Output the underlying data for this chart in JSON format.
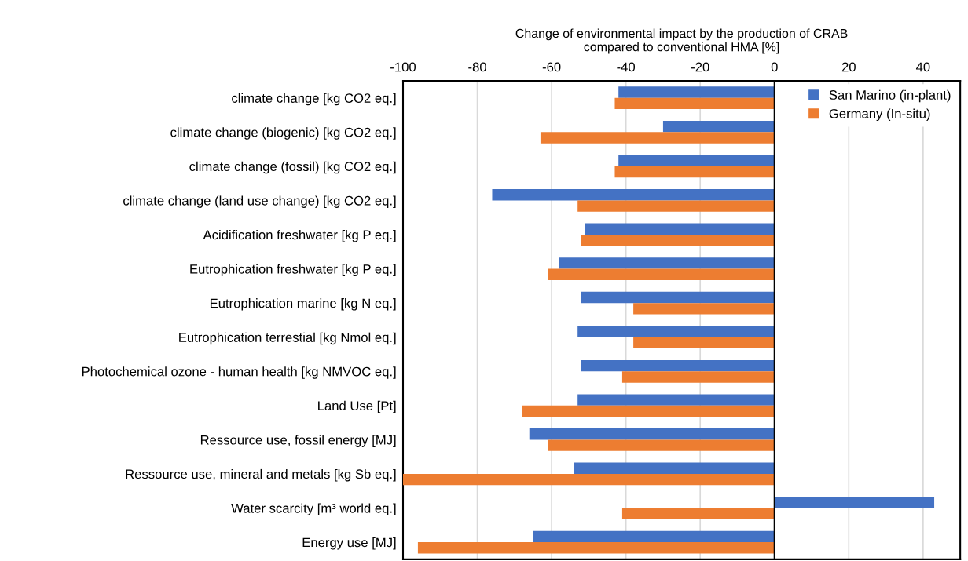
{
  "chart_data": {
    "type": "bar",
    "orientation": "horizontal",
    "xlabel": "Change of environmental impact by the production of CRAB\ncompared to conventional HMA [%]",
    "categories": [
      "climate change [kg CO2 eq.]",
      "climate change (biogenic) [kg CO2 eq.]",
      "climate change (fossil) [kg CO2 eq.]",
      "climate change (land use change) [kg CO2 eq.]",
      "Acidification freshwater [kg P eq.]",
      "Eutrophication freshwater [kg P eq.]",
      "Eutrophication marine [kg N eq.]",
      "Eutrophication terrestial [kg Nmol eq.]",
      "Photochemical ozone - human health [kg NMVOC eq.]",
      "Land Use [Pt]",
      "Ressource use, fossil energy [MJ]",
      "Ressource use, mineral and metals [kg Sb eq.]",
      "Water scarcity [m³ world eq.]",
      "Energy use [MJ]"
    ],
    "series": [
      {
        "name": "San Marino (in-plant)",
        "color": "#4472c4",
        "values": [
          -42,
          -30,
          -42,
          -76,
          -51,
          -58,
          -52,
          -53,
          -52,
          -53,
          -66,
          -54,
          43,
          -65
        ]
      },
      {
        "name": "Germany (In-situ)",
        "color": "#ed7d31",
        "values": [
          -43,
          -63,
          -43,
          -53,
          -52,
          -61,
          -38,
          -38,
          -41,
          -68,
          -61,
          -100,
          -41,
          -96
        ]
      }
    ],
    "xlim": [
      -100,
      50
    ],
    "xticks": [
      -100,
      -80,
      -60,
      -40,
      -20,
      0,
      20,
      40
    ],
    "ref_lines": [
      {
        "axis": "x",
        "value": 0,
        "color": "#000000"
      }
    ],
    "grid": "x",
    "legend": "top right"
  }
}
